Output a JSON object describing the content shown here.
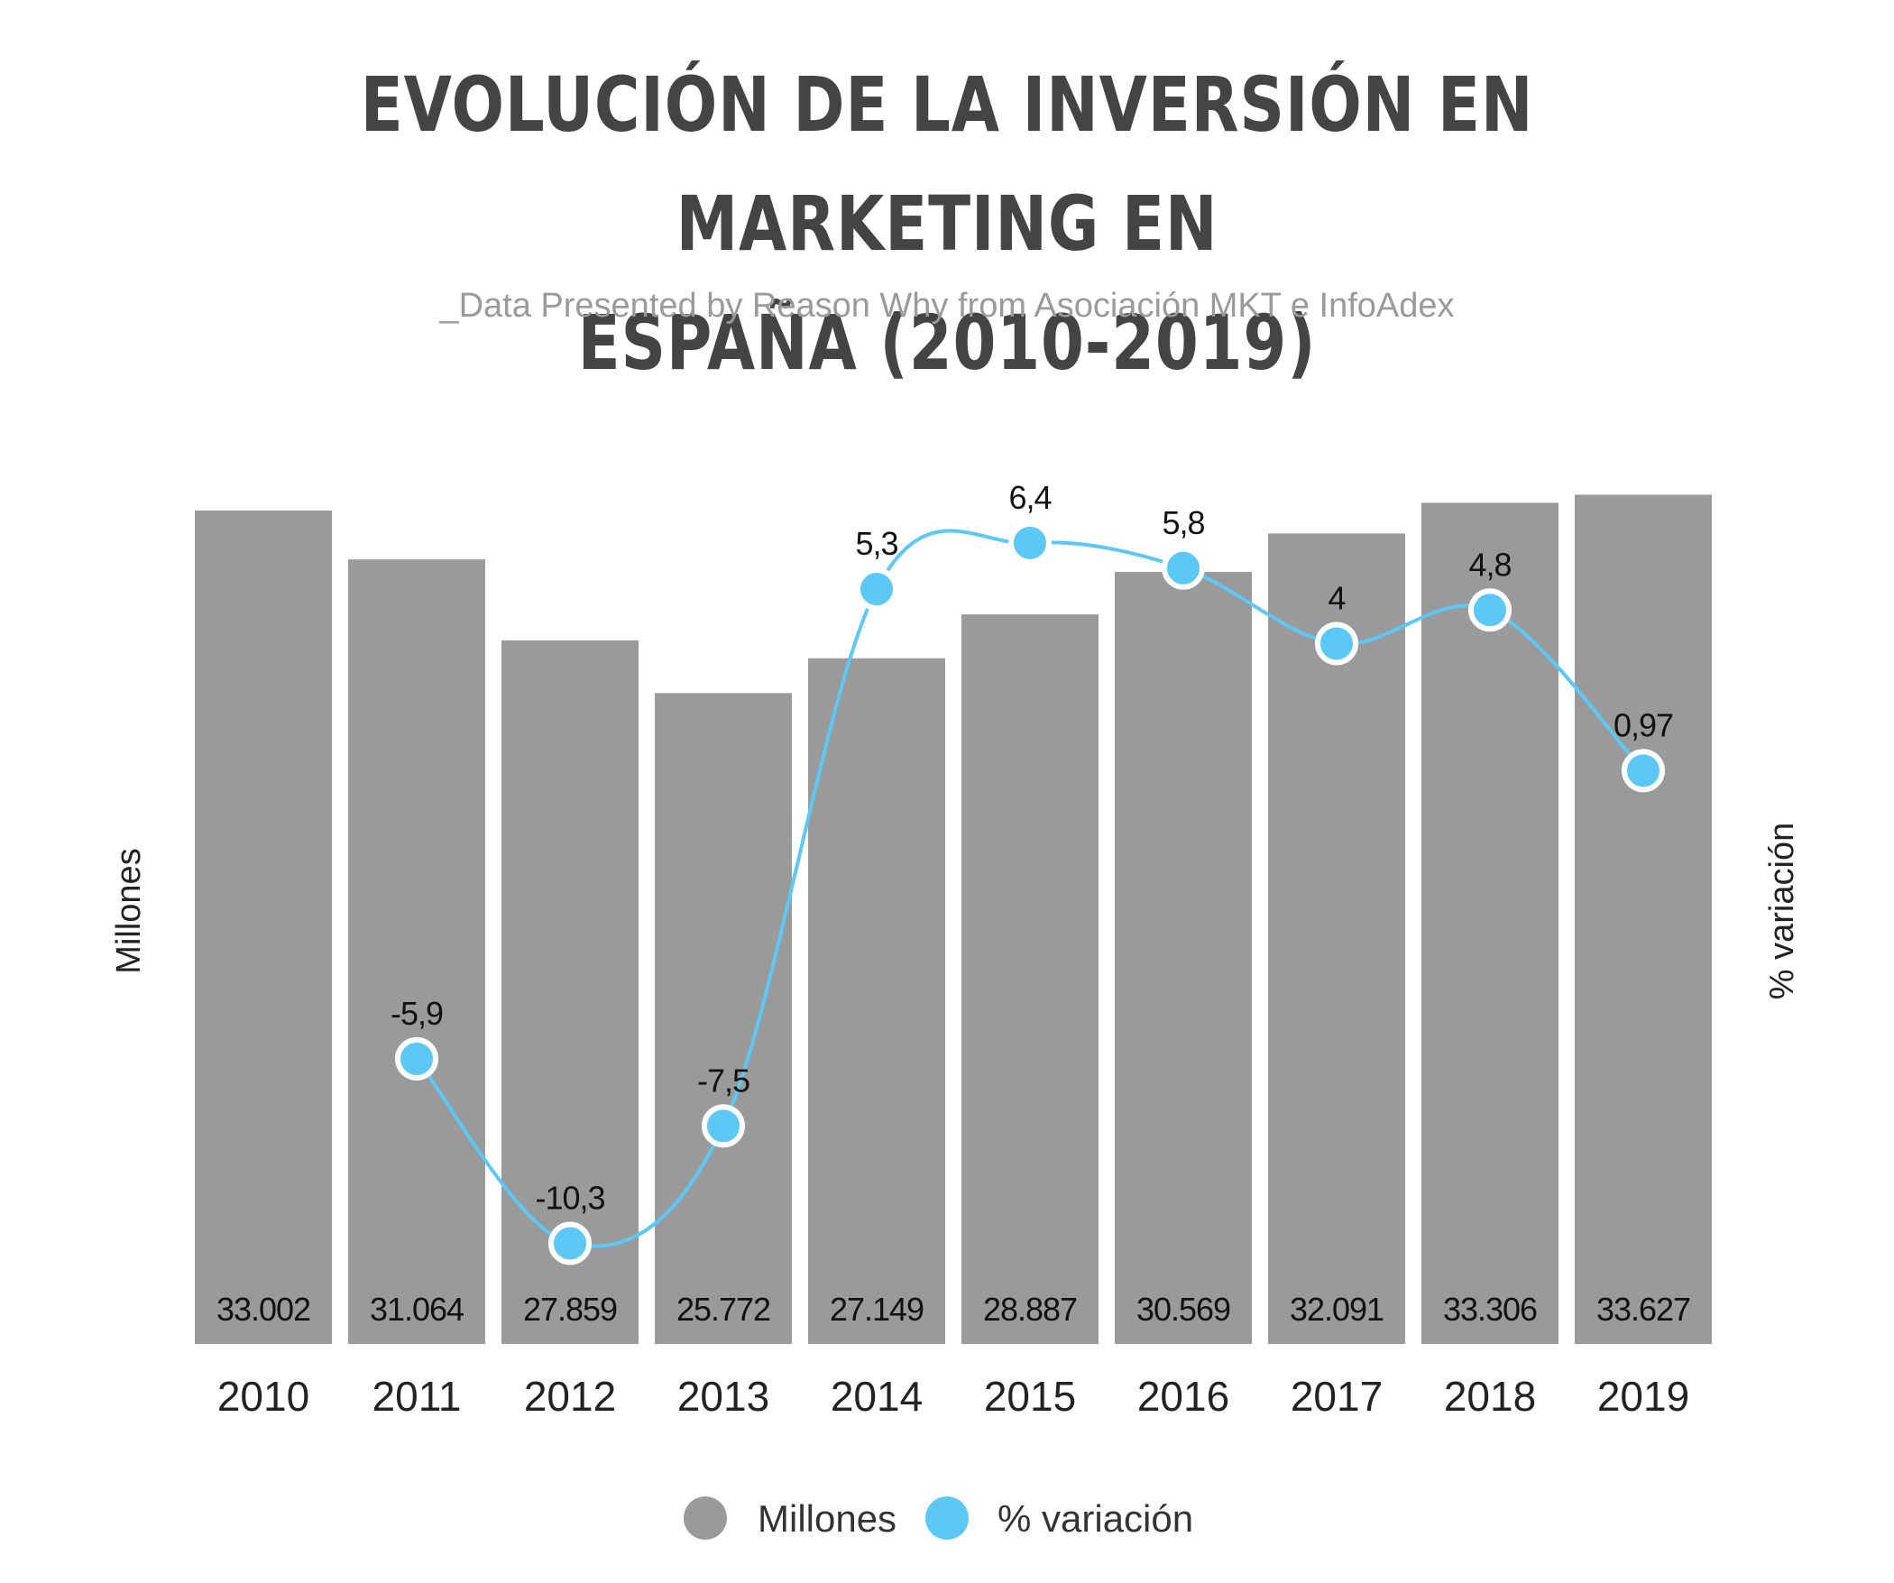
{
  "title": "EVOLUCIÓN DE LA INVERSIÓN EN MARKETING EN ESPAÑA (2010-2019)",
  "title_line1": "EVOLUCIÓN DE LA INVERSIÓN EN MARKETING EN",
  "title_line2": "ESPAÑA (2010-2019)",
  "subtitle": "_Data Presented by Reason Why from Asociación MKT e InfoAdex",
  "colors": {
    "bars": "#9a9a9a",
    "line": "#5bc8f5",
    "title": "#444444",
    "subtitle": "#9a9a9a"
  },
  "chart_data": {
    "type": "bar",
    "title": "EVOLUCIÓN DE LA INVERSIÓN EN MARKETING EN ESPAÑA (2010-2019)",
    "categories": [
      "2010",
      "2011",
      "2012",
      "2013",
      "2014",
      "2015",
      "2016",
      "2017",
      "2018",
      "2019"
    ],
    "ylabel": "Millones",
    "y2label": "% variación",
    "ylim": [
      0,
      34000
    ],
    "y2lim": [
      -11,
      7
    ],
    "grid": false,
    "legend_position": "bottom-center",
    "series": [
      {
        "name": "Millones",
        "type": "bar",
        "color": "#9a9a9a",
        "values": [
          33002,
          31064,
          27859,
          25772,
          27149,
          28887,
          30569,
          32091,
          33306,
          33627
        ],
        "labels": [
          "33.002",
          "31.064",
          "27.859",
          "25.772",
          "27.149",
          "28.887",
          "30.569",
          "32.091",
          "33.306",
          "33.627"
        ]
      },
      {
        "name": "% variación",
        "type": "line",
        "smooth": true,
        "axis": "right",
        "color": "#5bc8f5",
        "values": [
          null,
          -5.9,
          -10.3,
          -7.5,
          5.3,
          6.4,
          5.8,
          4,
          4.8,
          0.97
        ],
        "labels": [
          "",
          "-5,9",
          "-10,3",
          "-7,5",
          "5,3",
          "6,4",
          "5,8",
          "4",
          "4,8",
          "0,97"
        ]
      }
    ]
  }
}
